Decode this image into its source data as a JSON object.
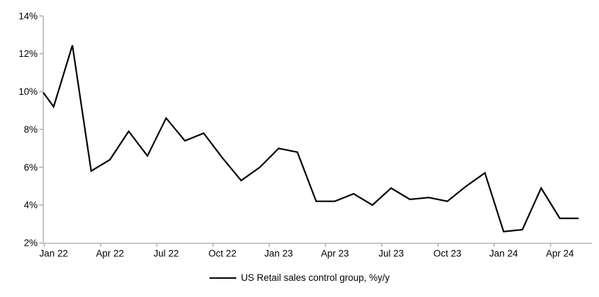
{
  "chart_data": {
    "type": "line",
    "title": "",
    "xlabel": "",
    "ylabel": "",
    "x": [
      "Jan 22",
      "Feb 22",
      "Mar 22",
      "Apr 22",
      "May 22",
      "Jun 22",
      "Jul 22",
      "Aug 22",
      "Sep 22",
      "Oct 22",
      "Nov 22",
      "Dec 22",
      "Jan 23",
      "Feb 23",
      "Mar 23",
      "Apr 23",
      "May 23",
      "Jun 23",
      "Jul 23",
      "Aug 23",
      "Sep 23",
      "Oct 23",
      "Nov 23",
      "Dec 23",
      "Jan 24",
      "Feb 24",
      "Mar 24",
      "Apr 24",
      "May 24"
    ],
    "series": [
      {
        "name": "US Retail sales control group, %y/y",
        "values": [
          9.2,
          12.45,
          5.8,
          6.4,
          7.9,
          6.6,
          8.6,
          7.4,
          7.8,
          6.5,
          5.3,
          6.0,
          7.0,
          6.8,
          4.2,
          4.2,
          4.6,
          4.0,
          4.9,
          4.3,
          4.4,
          4.2,
          5.0,
          5.7,
          2.6,
          2.7,
          4.9,
          3.3,
          3.3
        ],
        "color": "#000000"
      }
    ],
    "edge_start_value": 9.95,
    "ylim": [
      2,
      14
    ],
    "ytick_step": 2,
    "ytick_labels": [
      "2%",
      "4%",
      "6%",
      "8%",
      "10%",
      "12%",
      "14%"
    ],
    "xtick_labels": [
      "Jan 22",
      "Apr 22",
      "Jul 22",
      "Oct 22",
      "Jan 23",
      "Apr 23",
      "Jul 23",
      "Oct 23",
      "Jan 24",
      "Apr 24"
    ],
    "xtick_every": 3,
    "grid": false,
    "legend_position": "bottom",
    "axis_color": "#a6a6a6",
    "text_color": "#000000",
    "background_color": "#ffffff"
  },
  "legend": {
    "label": "US Retail sales control group, %y/y"
  }
}
